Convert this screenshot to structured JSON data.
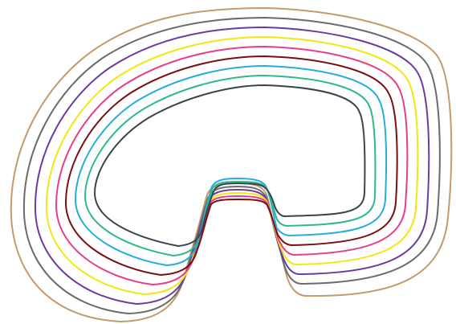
{
  "diagram": {
    "description_free": true,
    "contours": [
      {
        "name": "contour-outer-tan",
        "color": "#c49a6c"
      },
      {
        "name": "contour-gray",
        "color": "#6b6b6b"
      },
      {
        "name": "contour-purple",
        "color": "#6a3aa0"
      },
      {
        "name": "contour-yellow",
        "color": "#f2e80f"
      },
      {
        "name": "contour-pink",
        "color": "#e63e8a"
      },
      {
        "name": "contour-maroon",
        "color": "#7a0f10"
      },
      {
        "name": "contour-cyan",
        "color": "#25aedc"
      },
      {
        "name": "contour-green",
        "color": "#2fb88a"
      },
      {
        "name": "contour-inner-slate",
        "color": "#3a4450"
      }
    ]
  }
}
